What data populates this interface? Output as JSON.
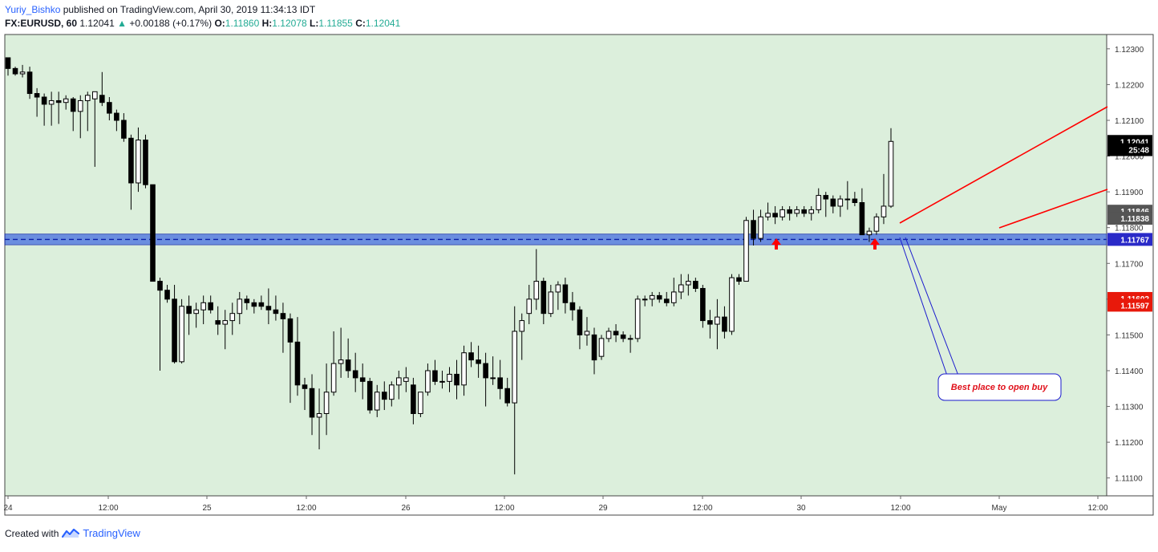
{
  "header": {
    "author": "Yuriy_Bishko",
    "published": "published on TradingView.com, April 30, 2019 11:34:13 IDT",
    "symbol": "FX:EURUSD, 60",
    "last": "1.12041",
    "change": "+0.00188 (+0.17%)",
    "o_label": "O:",
    "o_value": "1.11860",
    "h_label": "H:",
    "h_value": "1.12078",
    "l_label": "L:",
    "l_value": "1.11855",
    "c_label": "C:",
    "c_value": "1.12041"
  },
  "footer": {
    "created_with": "Created with",
    "brand": "TradingView"
  },
  "colors": {
    "background": "#dcefdc",
    "zone_fill": "#4169e1",
    "zone_line": "#0a1fa8",
    "trendline": "#ff0000",
    "callout_border": "#1a1acd",
    "callout_text": "#e0101a",
    "arrow": "#ff0000",
    "candle_up": "#ffffff",
    "candle_down": "#000000"
  },
  "chart_data": {
    "type": "candlestick",
    "symbol": "FX:EURUSD",
    "interval": "60",
    "ylim": [
      1.1105,
      1.1234
    ],
    "y_ticks": [
      "1.11100",
      "1.11200",
      "1.11300",
      "1.11400",
      "1.11500",
      "1.11600",
      "1.11700",
      "1.11800",
      "1.11900",
      "1.12000",
      "1.12100",
      "1.12200",
      "1.12300"
    ],
    "x_ticks": [
      "24",
      "12:00",
      "25",
      "12:00",
      "26",
      "12:00",
      "29",
      "12:00",
      "30",
      "12:00",
      "May",
      "12:00"
    ],
    "price_labels": [
      {
        "text": "1.12041",
        "bg": "#000000",
        "fg": "#ffffff",
        "price": 1.12041
      },
      {
        "text": "25:48",
        "bg": "#000000",
        "fg": "#ffffff",
        "price": 1.12018
      },
      {
        "text": "1.11846",
        "bg": "#555555",
        "fg": "#ffffff",
        "price": 1.11846
      },
      {
        "text": "1.11838",
        "bg": "#555555",
        "fg": "#ffffff",
        "price": 1.11826
      },
      {
        "text": "1.11767",
        "bg": "#2a2ac8",
        "fg": "#ffffff",
        "price": 1.11767
      },
      {
        "text": "1.11602",
        "bg": "#e8190b",
        "fg": "#ffffff",
        "price": 1.11602
      },
      {
        "text": "1.11597",
        "bg": "#e8190b",
        "fg": "#ffffff",
        "price": 1.11583
      }
    ],
    "zone": {
      "top": 1.11782,
      "bottom": 1.11752,
      "mid": 1.11767
    },
    "annotation": "Best place to open buy",
    "candles": [
      [
        1.12275,
        1.12275,
        1.12225,
        1.12245
      ],
      [
        1.12245,
        1.1225,
        1.12225,
        1.1223
      ],
      [
        1.1223,
        1.12255,
        1.1222,
        1.12235
      ],
      [
        1.12235,
        1.1225,
        1.1216,
        1.12175
      ],
      [
        1.12175,
        1.1219,
        1.1211,
        1.12165
      ],
      [
        1.12165,
        1.12175,
        1.12085,
        1.12145
      ],
      [
        1.12145,
        1.1218,
        1.12085,
        1.12155
      ],
      [
        1.12155,
        1.1218,
        1.1209,
        1.1215
      ],
      [
        1.1215,
        1.1217,
        1.1213,
        1.1216
      ],
      [
        1.1216,
        1.12165,
        1.1207,
        1.12125
      ],
      [
        1.12125,
        1.1217,
        1.1205,
        1.12155
      ],
      [
        1.12155,
        1.1218,
        1.1207,
        1.1217
      ],
      [
        1.1216,
        1.1218,
        1.1197,
        1.1218
      ],
      [
        1.1217,
        1.12235,
        1.1214,
        1.1215
      ],
      [
        1.1215,
        1.12165,
        1.121,
        1.1212
      ],
      [
        1.1212,
        1.1213,
        1.1207,
        1.121
      ],
      [
        1.121,
        1.1212,
        1.1204,
        1.1205
      ],
      [
        1.1205,
        1.1206,
        1.1185,
        1.11925
      ],
      [
        1.11925,
        1.1208,
        1.119,
        1.12045
      ],
      [
        1.12045,
        1.1206,
        1.1191,
        1.1192
      ],
      [
        1.1192,
        1.1192,
        1.1165,
        1.1165
      ],
      [
        1.1165,
        1.1166,
        1.114,
        1.11625
      ],
      [
        1.11625,
        1.1164,
        1.1159,
        1.116
      ],
      [
        1.116,
        1.1164,
        1.1142,
        1.11425
      ],
      [
        1.11425,
        1.116,
        1.1142,
        1.1158
      ],
      [
        1.1158,
        1.1161,
        1.115,
        1.1156
      ],
      [
        1.1156,
        1.1159,
        1.1152,
        1.1157
      ],
      [
        1.1157,
        1.1161,
        1.1153,
        1.1159
      ],
      [
        1.1159,
        1.1161,
        1.1156,
        1.1157
      ],
      [
        1.1154,
        1.1158,
        1.115,
        1.1153
      ],
      [
        1.1153,
        1.1157,
        1.1146,
        1.1154
      ],
      [
        1.1154,
        1.1159,
        1.115,
        1.1156
      ],
      [
        1.1156,
        1.1162,
        1.1153,
        1.116
      ],
      [
        1.116,
        1.1161,
        1.1157,
        1.1159
      ],
      [
        1.1159,
        1.116,
        1.1156,
        1.1158
      ],
      [
        1.1159,
        1.1161,
        1.1157,
        1.1158
      ],
      [
        1.1158,
        1.1163,
        1.1153,
        1.1157
      ],
      [
        1.1157,
        1.1161,
        1.1154,
        1.1156
      ],
      [
        1.1156,
        1.1159,
        1.1145,
        1.11545
      ],
      [
        1.11545,
        1.1156,
        1.1131,
        1.1148
      ],
      [
        1.1148,
        1.1155,
        1.1133,
        1.1136
      ],
      [
        1.1136,
        1.1138,
        1.1129,
        1.1135
      ],
      [
        1.1135,
        1.1139,
        1.1122,
        1.1127
      ],
      [
        1.1127,
        1.1135,
        1.1118,
        1.1128
      ],
      [
        1.1128,
        1.1142,
        1.1122,
        1.1134
      ],
      [
        1.1134,
        1.1151,
        1.1133,
        1.1142
      ],
      [
        1.1142,
        1.1152,
        1.1138,
        1.1143
      ],
      [
        1.1143,
        1.1149,
        1.1138,
        1.114
      ],
      [
        1.114,
        1.1145,
        1.1134,
        1.1138
      ],
      [
        1.1138,
        1.1142,
        1.1132,
        1.1137
      ],
      [
        1.1137,
        1.1138,
        1.1128,
        1.1129
      ],
      [
        1.1129,
        1.1136,
        1.1127,
        1.1134
      ],
      [
        1.1134,
        1.1137,
        1.1129,
        1.1132
      ],
      [
        1.1132,
        1.1137,
        1.113,
        1.1136
      ],
      [
        1.1136,
        1.114,
        1.1132,
        1.1138
      ],
      [
        1.1137,
        1.1141,
        1.1134,
        1.1138
      ],
      [
        1.1136,
        1.1138,
        1.1125,
        1.1128
      ],
      [
        1.1128,
        1.1134,
        1.1127,
        1.1134
      ],
      [
        1.1134,
        1.1142,
        1.1133,
        1.114
      ],
      [
        1.114,
        1.1143,
        1.1136,
        1.1137
      ],
      [
        1.1137,
        1.114,
        1.1135,
        1.1137
      ],
      [
        1.1137,
        1.1141,
        1.1134,
        1.1139
      ],
      [
        1.1139,
        1.1143,
        1.1132,
        1.1136
      ],
      [
        1.1136,
        1.1147,
        1.1133,
        1.1145
      ],
      [
        1.1145,
        1.1148,
        1.1141,
        1.1143
      ],
      [
        1.1143,
        1.1147,
        1.1138,
        1.1142
      ],
      [
        1.1142,
        1.1145,
        1.113,
        1.1138
      ],
      [
        1.1138,
        1.1144,
        1.1136,
        1.1138
      ],
      [
        1.1138,
        1.1143,
        1.1132,
        1.1135
      ],
      [
        1.1135,
        1.1138,
        1.113,
        1.1131
      ],
      [
        1.1131,
        1.1158,
        1.1111,
        1.1151
      ],
      [
        1.1151,
        1.1156,
        1.1143,
        1.1154
      ],
      [
        1.1156,
        1.1164,
        1.1153,
        1.116
      ],
      [
        1.116,
        1.1174,
        1.1157,
        1.1165
      ],
      [
        1.1165,
        1.1166,
        1.1153,
        1.1156
      ],
      [
        1.1156,
        1.1164,
        1.1155,
        1.1162
      ],
      [
        1.1162,
        1.1165,
        1.1157,
        1.1164
      ],
      [
        1.1164,
        1.1166,
        1.1156,
        1.1159
      ],
      [
        1.1159,
        1.1162,
        1.1154,
        1.1157
      ],
      [
        1.1157,
        1.1158,
        1.1146,
        1.115
      ],
      [
        1.115,
        1.1155,
        1.1147,
        1.1151
      ],
      [
        1.115,
        1.1152,
        1.1139,
        1.1143
      ],
      [
        1.1144,
        1.115,
        1.1143,
        1.1149
      ],
      [
        1.1149,
        1.1152,
        1.1148,
        1.1151
      ],
      [
        1.1151,
        1.1153,
        1.1148,
        1.115
      ],
      [
        1.115,
        1.1151,
        1.1148,
        1.1149
      ],
      [
        1.1149,
        1.115,
        1.1145,
        1.1149
      ],
      [
        1.1149,
        1.1161,
        1.1148,
        1.116
      ],
      [
        1.116,
        1.1161,
        1.1158,
        1.116
      ],
      [
        1.116,
        1.1162,
        1.1158,
        1.1161
      ],
      [
        1.1161,
        1.1162,
        1.1159,
        1.116
      ],
      [
        1.116,
        1.1162,
        1.1158,
        1.1159
      ],
      [
        1.1159,
        1.1166,
        1.1158,
        1.1162
      ],
      [
        1.1162,
        1.1167,
        1.116,
        1.1164
      ],
      [
        1.1164,
        1.1167,
        1.1161,
        1.1165
      ],
      [
        1.1165,
        1.1166,
        1.1162,
        1.1163
      ],
      [
        1.1163,
        1.1164,
        1.1152,
        1.1154
      ],
      [
        1.1154,
        1.1157,
        1.1149,
        1.1153
      ],
      [
        1.1153,
        1.116,
        1.1146,
        1.1155
      ],
      [
        1.1155,
        1.1158,
        1.1149,
        1.1151
      ],
      [
        1.1151,
        1.1167,
        1.115,
        1.1166
      ],
      [
        1.1166,
        1.1167,
        1.1164,
        1.1165
      ],
      [
        1.1165,
        1.1183,
        1.1165,
        1.1182
      ],
      [
        1.1182,
        1.1185,
        1.1175,
        1.1177
      ],
      [
        1.1177,
        1.1185,
        1.1176,
        1.1183
      ],
      [
        1.1183,
        1.1187,
        1.1182,
        1.1184
      ],
      [
        1.1184,
        1.1186,
        1.1181,
        1.1183
      ],
      [
        1.1183,
        1.1186,
        1.1182,
        1.1185
      ],
      [
        1.1185,
        1.1186,
        1.1182,
        1.1184
      ],
      [
        1.1184,
        1.1186,
        1.1183,
        1.1185
      ],
      [
        1.1185,
        1.1186,
        1.1183,
        1.1184
      ],
      [
        1.1184,
        1.1186,
        1.1182,
        1.1185
      ],
      [
        1.1185,
        1.1191,
        1.1184,
        1.1189
      ],
      [
        1.1189,
        1.119,
        1.1183,
        1.1188
      ],
      [
        1.1188,
        1.1189,
        1.1184,
        1.1186
      ],
      [
        1.1186,
        1.1189,
        1.1183,
        1.1188
      ],
      [
        1.1188,
        1.1193,
        1.1185,
        1.1188
      ],
      [
        1.1188,
        1.119,
        1.1186,
        1.1187
      ],
      [
        1.1187,
        1.1191,
        1.1178,
        1.1178
      ],
      [
        1.1178,
        1.118,
        1.1176,
        1.1179
      ],
      [
        1.1179,
        1.1184,
        1.1178,
        1.1183
      ],
      [
        1.1183,
        1.1195,
        1.1181,
        1.1186
      ],
      [
        1.1186,
        1.12078,
        1.11855,
        1.12041
      ]
    ]
  }
}
